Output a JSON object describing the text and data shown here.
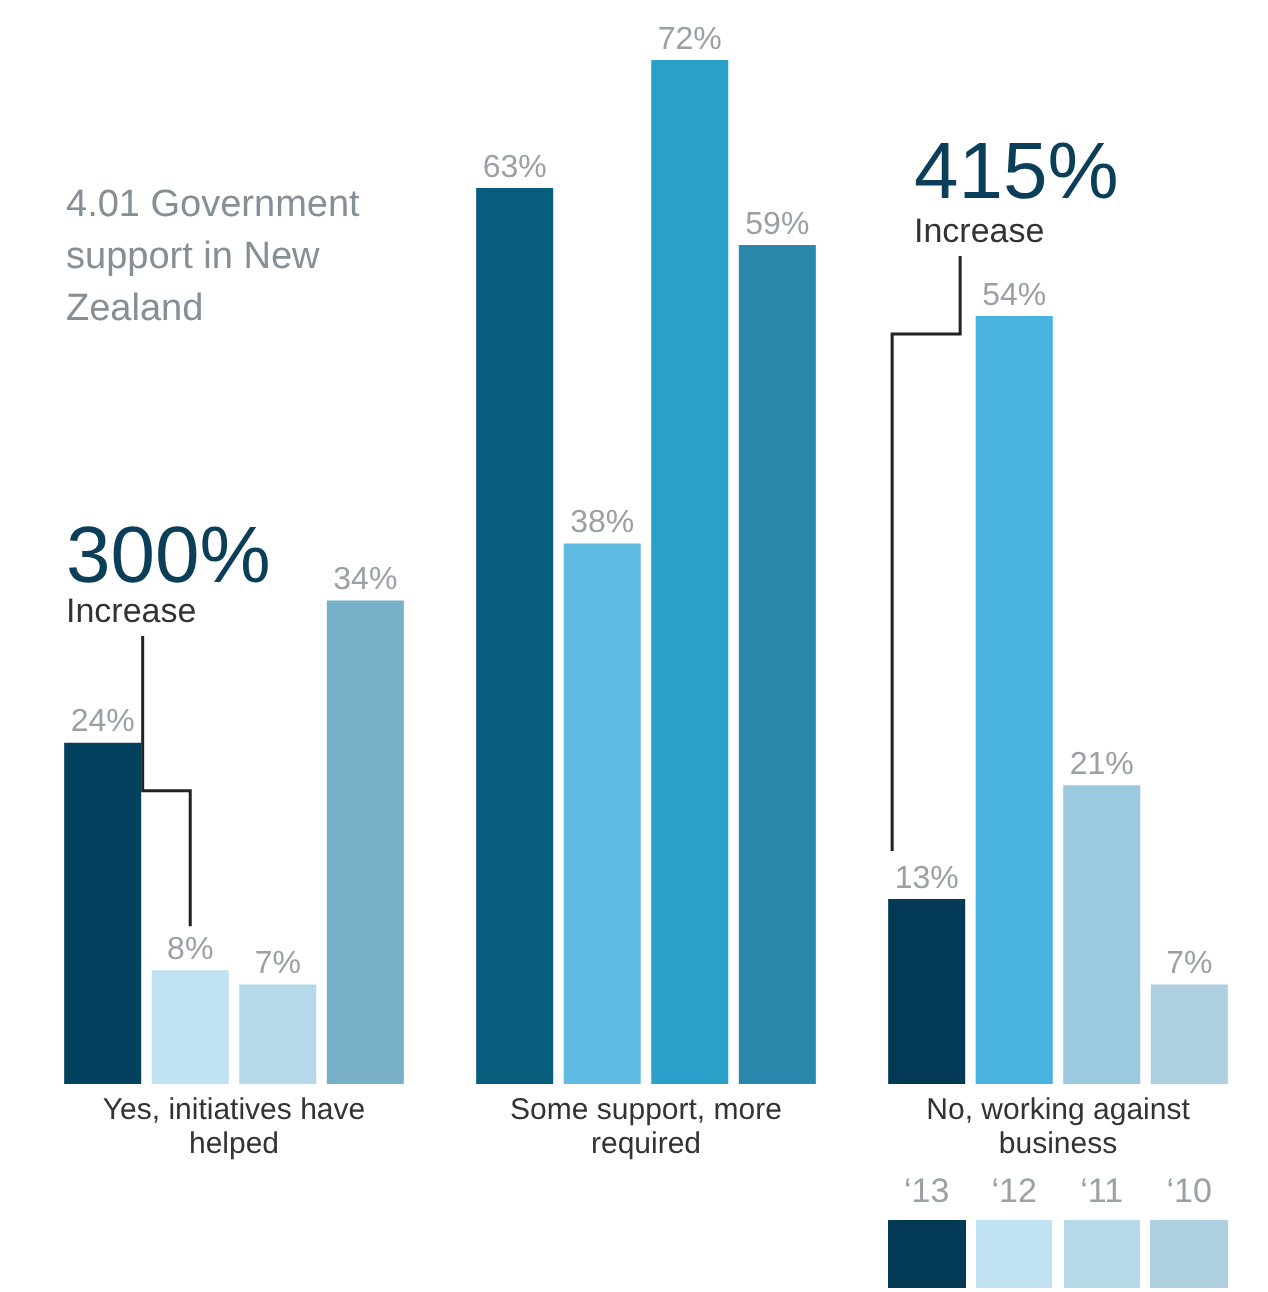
{
  "chart_data": {
    "type": "bar",
    "title": "4.01 Government support in New Zealand",
    "categories": [
      "Yes, initiatives have helped",
      "Some support, more required",
      "No, working against business"
    ],
    "series": [
      {
        "name": "‘13",
        "color": "#023a55",
        "colors": [
          "#02425e",
          "#065e7c",
          "#023a55"
        ],
        "values": [
          24,
          63,
          13
        ],
        "value_labels": [
          "24%",
          "63%",
          "13%"
        ]
      },
      {
        "name": "‘12",
        "color": "#c0e1f1",
        "colors": [
          "#c0e1f1",
          "#5fbbe1",
          "#4bb3df"
        ],
        "values": [
          8,
          38,
          54
        ],
        "value_labels": [
          "8%",
          "38%",
          "54%"
        ]
      },
      {
        "name": "‘11",
        "color": "#b5d9e9",
        "colors": [
          "#b5d9e9",
          "#2aa0cb",
          "#9ac9e0"
        ],
        "values": [
          7,
          72,
          21
        ],
        "value_labels": [
          "7%",
          "72%",
          "21%"
        ]
      },
      {
        "name": "‘10",
        "color": "#aecfe0",
        "colors": [
          "#78b0ca",
          "#2b88ad",
          "#aecfe0"
        ],
        "values": [
          34,
          59,
          7
        ],
        "value_labels": [
          "34%",
          "59%",
          "7%"
        ]
      }
    ],
    "annotations": [
      "300%",
      "Increase",
      "415%",
      "Increase"
    ],
    "legend": "bottom right"
  }
}
